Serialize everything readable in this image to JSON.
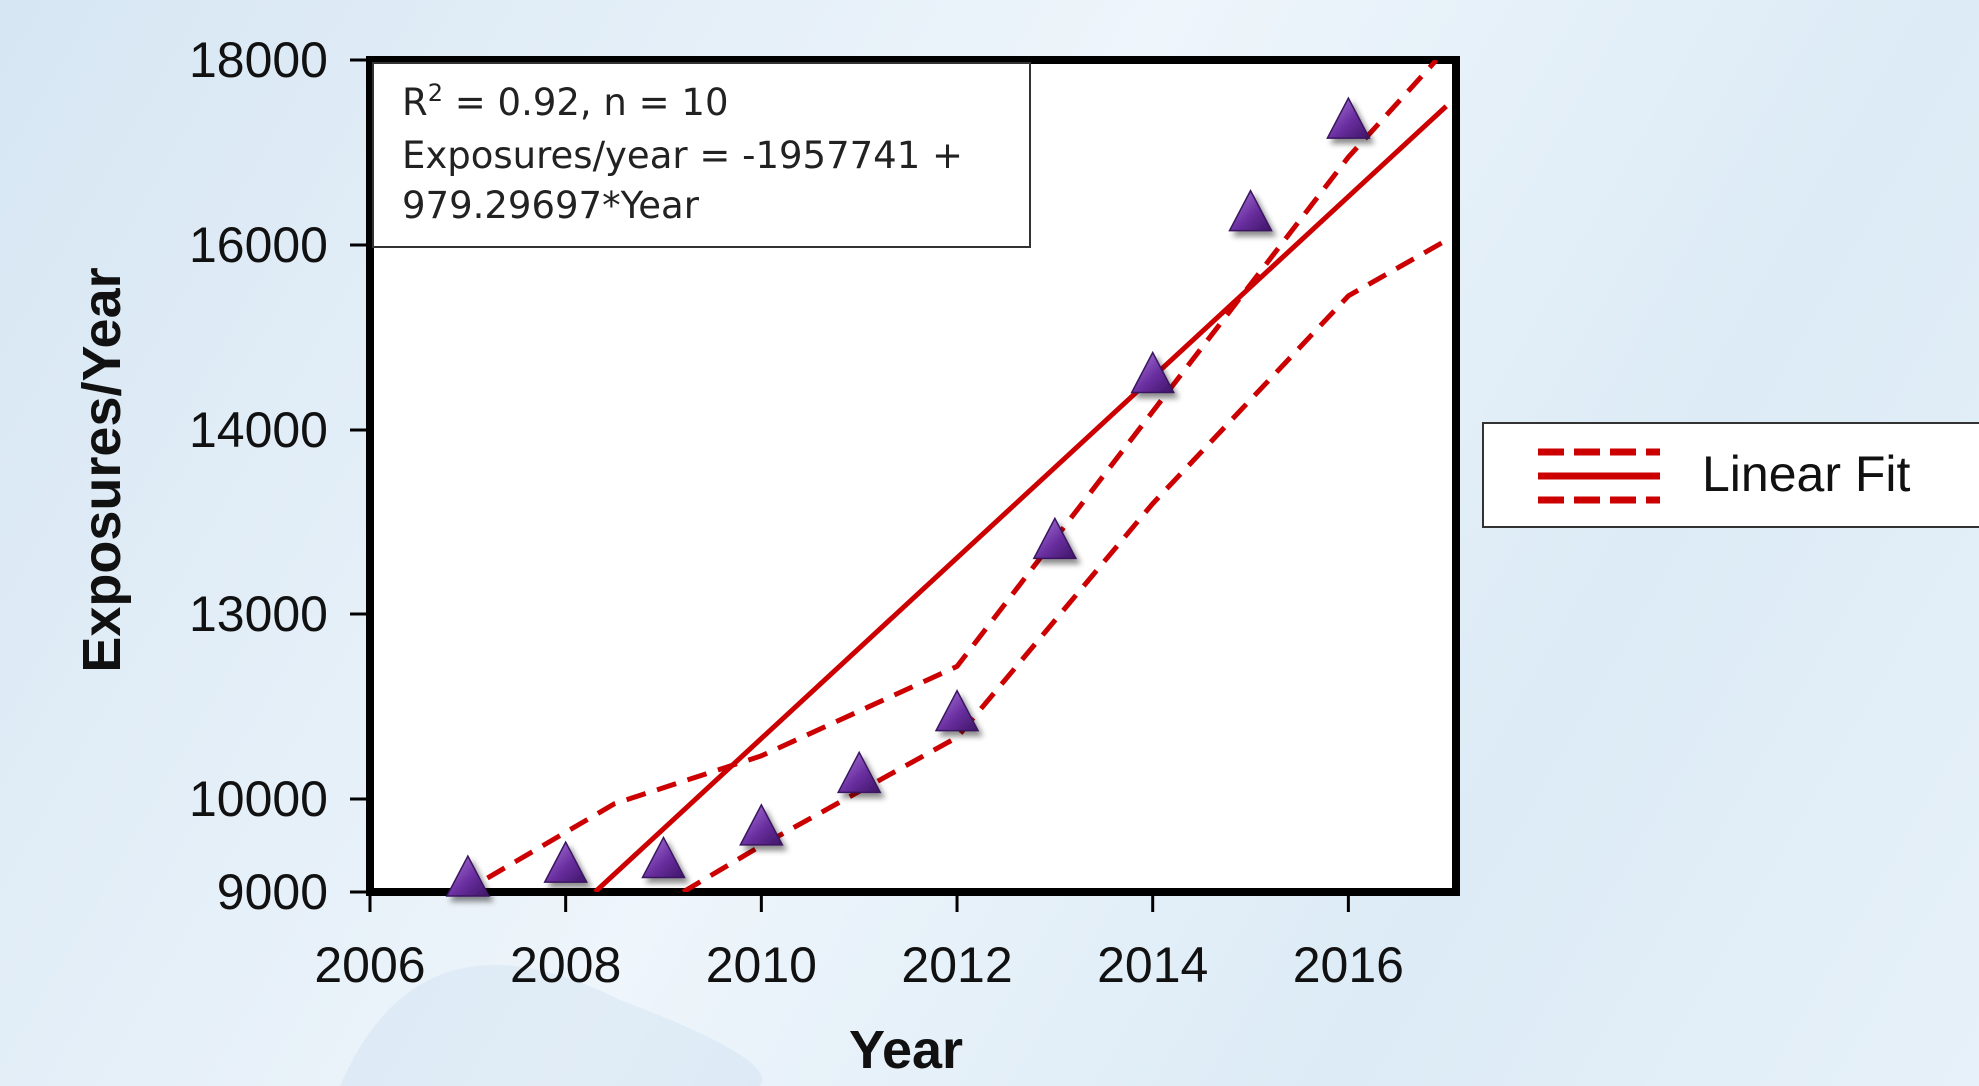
{
  "chart_data": {
    "type": "scatter",
    "xlabel": "Year",
    "ylabel": "Exposures/Year",
    "xlim": [
      2006,
      2017.1
    ],
    "x_ticks": [
      2006,
      2008,
      2010,
      2012,
      2014,
      2016
    ],
    "y_ticks": [
      9000,
      10000,
      13000,
      14000,
      16000,
      18000
    ],
    "y_tick_labels": [
      "9000",
      "10000",
      "13000",
      "14000",
      "16000",
      "18000"
    ],
    "series": [
      {
        "marker": "triangle",
        "color": "#6a2fa0",
        "x": [
          2007,
          2008,
          2009,
          2010,
          2011,
          2012,
          2013,
          2014,
          2015,
          2016
        ],
        "y": [
          9150,
          9300,
          9350,
          9700,
          10400,
          11400,
          13400,
          14600,
          16350,
          17350
        ]
      }
    ],
    "fit_line": {
      "label": "Linear Fit",
      "color": "#cc0000",
      "x": [
        2008.3,
        2017.0
      ],
      "y": [
        9000,
        17500
      ]
    },
    "confidence_upper": {
      "color": "#cc0000",
      "x": [
        2007.2,
        2008.5,
        2010,
        2012,
        2014,
        2016,
        2016.9
      ],
      "y": [
        9150,
        9950,
        10700,
        12150,
        14200,
        16950,
        18000
      ]
    },
    "confidence_lower": {
      "color": "#cc0000",
      "x": [
        2009.2,
        2010,
        2012,
        2014,
        2016,
        2017.0
      ],
      "y": [
        9000,
        9500,
        11000,
        13600,
        15450,
        16050
      ]
    },
    "annotation": {
      "line1_main": "R",
      "line1_sup": "2",
      "line1_rest": " = 0.92, n = 10",
      "line2": "Exposures/year = -1957741 +",
      "line3": "979.29697*Year"
    },
    "legend": {
      "label": "Linear Fit",
      "position": "right"
    },
    "grid": false
  }
}
